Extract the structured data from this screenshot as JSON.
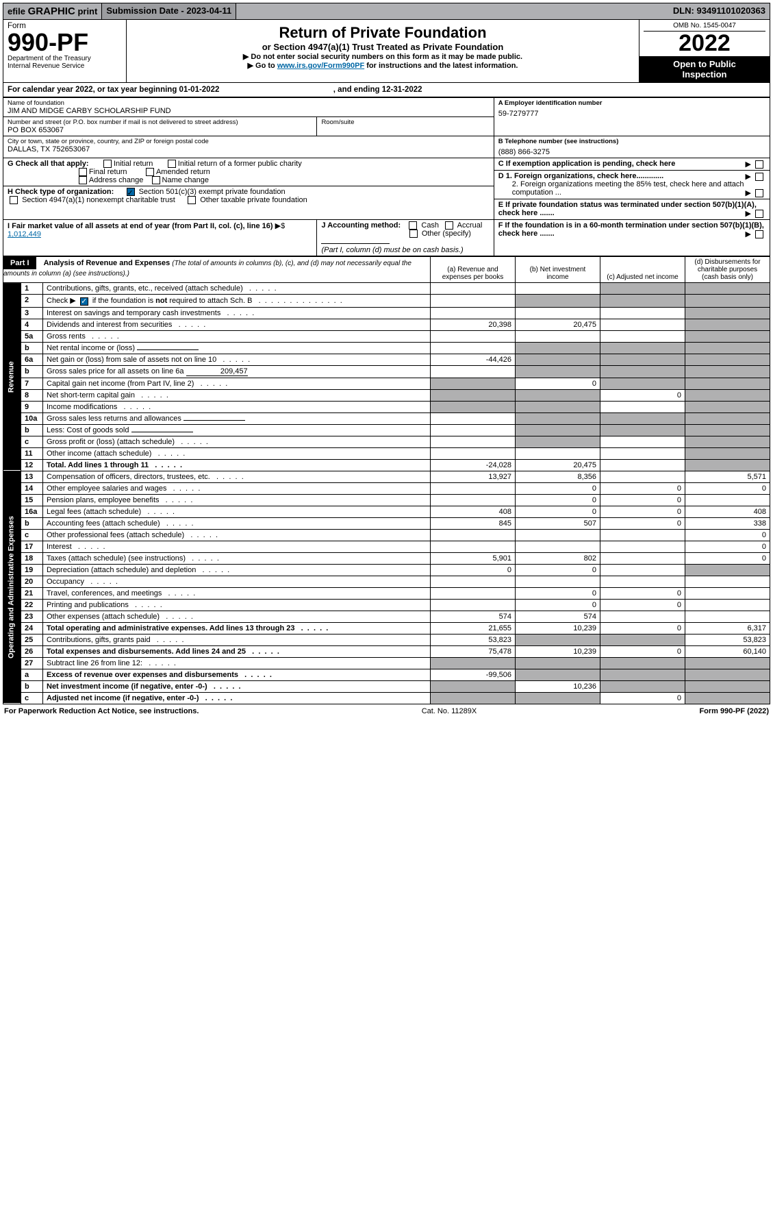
{
  "topbar": {
    "efile_prefix": "efile",
    "efile_bold": "GRAPHIC",
    "efile_suffix": "print",
    "subdate": "Submission Date - 2023-04-11",
    "dln": "DLN: 93491101020363"
  },
  "header": {
    "form_word": "Form",
    "form_num": "990-PF",
    "dept": "Department of the Treasury",
    "irs": "Internal Revenue Service",
    "title1": "Return of Private Foundation",
    "title2": "or Section 4947(a)(1) Trust Treated as Private Foundation",
    "title3a": "▶ Do not enter social security numbers on this form as it may be made public.",
    "title3b_pre": "▶ Go to ",
    "title3b_link": "www.irs.gov/Form990PF",
    "title3b_post": " for instructions and the latest information.",
    "omb": "OMB No. 1545-0047",
    "year": "2022",
    "openbox1": "Open to Public",
    "openbox2": "Inspection"
  },
  "calyear": {
    "text_pre": "For calendar year 2022, or tax year beginning ",
    "begin": "01-01-2022",
    "text_mid": " , and ending ",
    "end": "12-31-2022"
  },
  "org": {
    "name_lbl": "Name of foundation",
    "name": "JIM AND MIDGE CARBY SCHOLARSHIP FUND",
    "addr_lbl": "Number and street (or P.O. box number if mail is not delivered to street address)",
    "room_lbl": "Room/suite",
    "addr": "PO BOX 653067",
    "city_lbl": "City or town, state or province, country, and ZIP or foreign postal code",
    "city": "DALLAS, TX  752653067",
    "ein_lbl": "A Employer identification number",
    "ein": "59-7279777",
    "tel_lbl": "B Telephone number (see instructions)",
    "tel": "(888) 866-3275",
    "c_lbl": "C If exemption application is pending, check here",
    "d1_lbl": "D 1. Foreign organizations, check here.............",
    "d2_lbl": "2. Foreign organizations meeting the 85% test, check here and attach computation ...",
    "e_lbl": "E  If private foundation status was terminated under section 507(b)(1)(A), check here .......",
    "f_lbl": "F  If the foundation is in a 60-month termination under section 507(b)(1)(B), check here .......",
    "g_lbl": "G Check all that apply:",
    "g_opts": [
      "Initial return",
      "Final return",
      "Address change",
      "Initial return of a former public charity",
      "Amended return",
      "Name change"
    ],
    "h_lbl": "H Check type of organization:",
    "h1": "Section 501(c)(3) exempt private foundation",
    "h2": "Section 4947(a)(1) nonexempt charitable trust",
    "h3": "Other taxable private foundation",
    "i_lbl": "I Fair market value of all assets at end of year (from Part II, col. (c), line 16)",
    "i_val": "1,012,449",
    "j_lbl": "J Accounting method:",
    "j_opts": [
      "Cash",
      "Accrual"
    ],
    "j_other": "Other (specify)",
    "j_note": "(Part I, column (d) must be on cash basis.)"
  },
  "part1": {
    "label": "Part I",
    "title": "Analysis of Revenue and Expenses",
    "title_note": "(The total of amounts in columns (b), (c), and (d) may not necessarily equal the amounts in column (a) (see instructions).)",
    "cols": {
      "a": "(a)  Revenue and expenses per books",
      "b": "(b)  Net investment income",
      "c": "(c)  Adjusted net income",
      "d": "(d)  Disbursements for charitable purposes (cash basis only)"
    }
  },
  "sides": {
    "rev": "Revenue",
    "exp": "Operating and Administrative Expenses"
  },
  "rows": [
    {
      "ln": "1",
      "desc": "Contributions, gifts, grants, etc., received (attach schedule)",
      "a": "",
      "b": "",
      "c": "g",
      "d": "g"
    },
    {
      "ln": "2",
      "desc": "Check ▶ ☑ if the foundation is not required to attach Sch. B",
      "a": "",
      "b": "g",
      "c": "g",
      "d": "g",
      "note": "check"
    },
    {
      "ln": "3",
      "desc": "Interest on savings and temporary cash investments",
      "a": "",
      "b": "",
      "c": "",
      "d": "g"
    },
    {
      "ln": "4",
      "desc": "Dividends and interest from securities",
      "a": "20,398",
      "b": "20,475",
      "c": "",
      "d": "g"
    },
    {
      "ln": "5a",
      "desc": "Gross rents",
      "a": "",
      "b": "",
      "c": "",
      "d": "g"
    },
    {
      "ln": "b",
      "desc": "Net rental income or (loss)",
      "a": "",
      "b": "g",
      "c": "g",
      "d": "g",
      "inline": ""
    },
    {
      "ln": "6a",
      "desc": "Net gain or (loss) from sale of assets not on line 10",
      "a": "-44,426",
      "b": "g",
      "c": "g",
      "d": "g"
    },
    {
      "ln": "b",
      "desc": "Gross sales price for all assets on line 6a",
      "a": "",
      "b": "g",
      "c": "g",
      "d": "g",
      "inline": "209,457"
    },
    {
      "ln": "7",
      "desc": "Capital gain net income (from Part IV, line 2)",
      "a": "g",
      "b": "0",
      "c": "g",
      "d": "g"
    },
    {
      "ln": "8",
      "desc": "Net short-term capital gain",
      "a": "g",
      "b": "g",
      "c": "0",
      "d": "g"
    },
    {
      "ln": "9",
      "desc": "Income modifications",
      "a": "g",
      "b": "g",
      "c": "",
      "d": "g"
    },
    {
      "ln": "10a",
      "desc": "Gross sales less returns and allowances",
      "a": "",
      "b": "g",
      "c": "g",
      "d": "g",
      "inline": ""
    },
    {
      "ln": "b",
      "desc": "Less: Cost of goods sold",
      "a": "",
      "b": "g",
      "c": "g",
      "d": "g",
      "inline": ""
    },
    {
      "ln": "c",
      "desc": "Gross profit or (loss) (attach schedule)",
      "a": "",
      "b": "g",
      "c": "",
      "d": "g"
    },
    {
      "ln": "11",
      "desc": "Other income (attach schedule)",
      "a": "",
      "b": "",
      "c": "",
      "d": "g"
    },
    {
      "ln": "12",
      "desc": "Total. Add lines 1 through 11",
      "a": "-24,028",
      "b": "20,475",
      "c": "",
      "d": "g",
      "bold": true
    },
    {
      "ln": "13",
      "desc": "Compensation of officers, directors, trustees, etc.",
      "a": "13,927",
      "b": "8,356",
      "c": "",
      "d": "5,571"
    },
    {
      "ln": "14",
      "desc": "Other employee salaries and wages",
      "a": "",
      "b": "0",
      "c": "0",
      "d": "0"
    },
    {
      "ln": "15",
      "desc": "Pension plans, employee benefits",
      "a": "",
      "b": "0",
      "c": "0",
      "d": ""
    },
    {
      "ln": "16a",
      "desc": "Legal fees (attach schedule)",
      "a": "408",
      "b": "0",
      "c": "0",
      "d": "408"
    },
    {
      "ln": "b",
      "desc": "Accounting fees (attach schedule)",
      "a": "845",
      "b": "507",
      "c": "0",
      "d": "338"
    },
    {
      "ln": "c",
      "desc": "Other professional fees (attach schedule)",
      "a": "",
      "b": "",
      "c": "",
      "d": "0"
    },
    {
      "ln": "17",
      "desc": "Interest",
      "a": "",
      "b": "",
      "c": "",
      "d": "0"
    },
    {
      "ln": "18",
      "desc": "Taxes (attach schedule) (see instructions)",
      "a": "5,901",
      "b": "802",
      "c": "",
      "d": "0"
    },
    {
      "ln": "19",
      "desc": "Depreciation (attach schedule) and depletion",
      "a": "0",
      "b": "0",
      "c": "",
      "d": "g"
    },
    {
      "ln": "20",
      "desc": "Occupancy",
      "a": "",
      "b": "",
      "c": "",
      "d": ""
    },
    {
      "ln": "21",
      "desc": "Travel, conferences, and meetings",
      "a": "",
      "b": "0",
      "c": "0",
      "d": ""
    },
    {
      "ln": "22",
      "desc": "Printing and publications",
      "a": "",
      "b": "0",
      "c": "0",
      "d": ""
    },
    {
      "ln": "23",
      "desc": "Other expenses (attach schedule)",
      "a": "574",
      "b": "574",
      "c": "",
      "d": ""
    },
    {
      "ln": "24",
      "desc": "Total operating and administrative expenses. Add lines 13 through 23",
      "a": "21,655",
      "b": "10,239",
      "c": "0",
      "d": "6,317",
      "bold": true
    },
    {
      "ln": "25",
      "desc": "Contributions, gifts, grants paid",
      "a": "53,823",
      "b": "g",
      "c": "g",
      "d": "53,823"
    },
    {
      "ln": "26",
      "desc": "Total expenses and disbursements. Add lines 24 and 25",
      "a": "75,478",
      "b": "10,239",
      "c": "0",
      "d": "60,140",
      "bold": true
    },
    {
      "ln": "27",
      "desc": "Subtract line 26 from line 12:",
      "a": "g",
      "b": "g",
      "c": "g",
      "d": "g"
    },
    {
      "ln": "a",
      "desc": "Excess of revenue over expenses and disbursements",
      "a": "-99,506",
      "b": "g",
      "c": "g",
      "d": "g",
      "bold": true
    },
    {
      "ln": "b",
      "desc": "Net investment income (if negative, enter -0-)",
      "a": "g",
      "b": "10,236",
      "c": "g",
      "d": "g",
      "bold": true
    },
    {
      "ln": "c",
      "desc": "Adjusted net income (if negative, enter -0-)",
      "a": "g",
      "b": "g",
      "c": "0",
      "d": "g",
      "bold": true
    }
  ],
  "footer": {
    "left": "For Paperwork Reduction Act Notice, see instructions.",
    "mid": "Cat. No. 11289X",
    "right": "Form 990-PF (2022)"
  },
  "colors": {
    "grey": "#b0b0b1",
    "topgrey": "#afb0b3",
    "link": "#0067a5"
  }
}
